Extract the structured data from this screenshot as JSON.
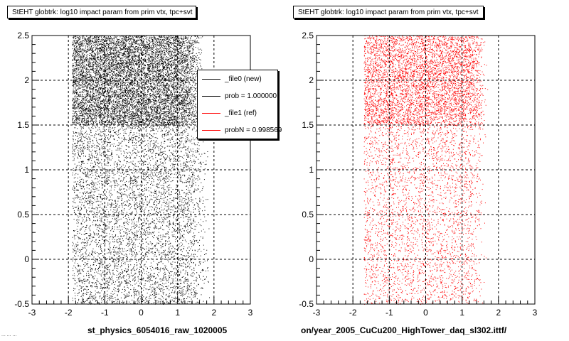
{
  "panels": [
    {
      "title": "StEHT globtrk: log10 impact param from prim vtx, tpc+svt",
      "xlabel": "st_physics_6054016_raw_1020005",
      "color": "#000000"
    },
    {
      "title": "StEHT globtrk: log10 impact param from prim vtx, tpc+svt",
      "xlabel": "on/year_2005_CuCu200_HighTower_daq_sl302.ittf/",
      "color": "#ff0000"
    }
  ],
  "legend": {
    "entries": [
      {
        "label": "_file0 (new)",
        "color": "#000000"
      },
      {
        "label": "prob = 1.000000",
        "color": "#000000"
      },
      {
        "label": "_file1 (ref)",
        "color": "#ff0000"
      },
      {
        "label": "probN = 0.998569",
        "color": "#ff0000"
      }
    ]
  },
  "footer_text": "... ... ...",
  "chart_data": [
    {
      "type": "scatter",
      "title": "StEHT globtrk: log10 impact param from prim vtx, tpc+svt",
      "xlabel": "st_physics_6054016_raw_1020005",
      "ylabel": "",
      "xlim": [
        -3,
        3
      ],
      "ylim": [
        -0.5,
        2.5
      ],
      "xticks": [
        "-3",
        "-2",
        "-1",
        "0",
        "1",
        "2",
        "3"
      ],
      "yticks": [
        "-0.5",
        "0",
        "0.5",
        "1",
        "1.5",
        "2",
        "2.5"
      ],
      "grid": true,
      "color": "#000000",
      "density": {
        "x_range": [
          -1.9,
          1.9
        ],
        "dense_region": {
          "y_range": [
            1.5,
            2.5
          ],
          "x_range": [
            -1.9,
            1.7
          ]
        },
        "sparse_region": {
          "y_range": [
            -0.5,
            1.5
          ],
          "x_range": [
            -1.9,
            1.9
          ]
        },
        "dense_count": 9000,
        "sparse_count": 5500
      }
    },
    {
      "type": "scatter",
      "title": "StEHT globtrk: log10 impact param from prim vtx, tpc+svt",
      "xlabel": "on/year_2005_CuCu200_HighTower_daq_sl302.ittf/",
      "ylabel": "",
      "xlim": [
        -3,
        3
      ],
      "ylim": [
        -0.5,
        2.5
      ],
      "xticks": [
        "-3",
        "-2",
        "-1",
        "0",
        "1",
        "2",
        "3"
      ],
      "yticks": [
        "-0.5",
        "0",
        "0.5",
        "1",
        "1.5",
        "2",
        "2.5"
      ],
      "grid": true,
      "color": "#ff0000",
      "density": {
        "x_range": [
          -1.9,
          1.9
        ],
        "dense_region": {
          "y_range": [
            1.5,
            2.5
          ],
          "x_range": [
            -1.7,
            1.7
          ]
        },
        "sparse_region": {
          "y_range": [
            -0.5,
            1.5
          ],
          "x_range": [
            -1.7,
            1.7
          ]
        },
        "dense_count": 5000,
        "sparse_count": 3200
      }
    }
  ]
}
